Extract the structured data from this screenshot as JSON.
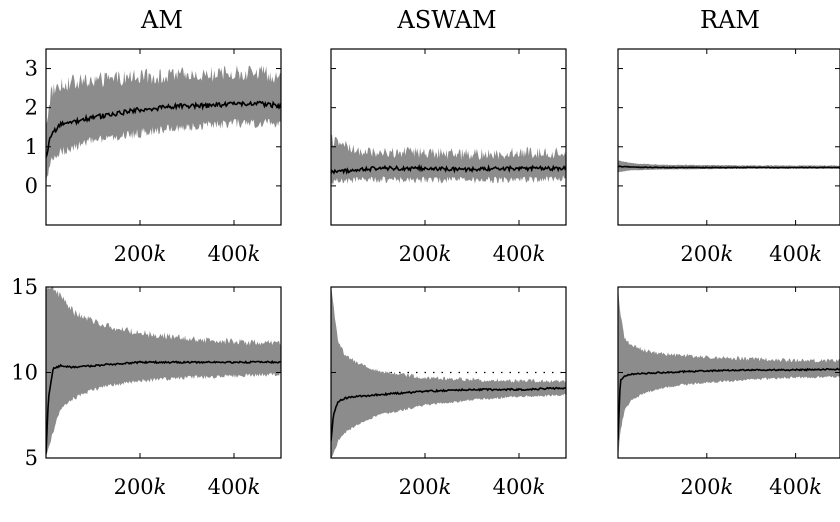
{
  "figure": {
    "titles": [
      "AM",
      "ASWAM",
      "RAM"
    ]
  },
  "chart_data": [
    {
      "type": "line",
      "panel": "AM (top)",
      "title": "AM",
      "xlim": [
        0,
        500000
      ],
      "ylim": [
        -1,
        3.5
      ],
      "xticks": [
        200000,
        400000
      ],
      "xtick_labels": [
        "200k",
        "400k"
      ],
      "yticks": [
        0,
        1,
        2,
        3
      ],
      "ytick_labels": [
        "0",
        "1",
        "2",
        "3"
      ],
      "reference_line": null,
      "grid": false,
      "legend": "none",
      "x": [
        0,
        10000,
        30000,
        60000,
        100000,
        150000,
        200000,
        250000,
        300000,
        350000,
        400000,
        450000,
        500000
      ],
      "mean": [
        0.7,
        1.3,
        1.55,
        1.65,
        1.75,
        1.85,
        1.95,
        2.0,
        2.05,
        2.05,
        2.1,
        2.1,
        2.05
      ],
      "band_lower": [
        0.1,
        0.6,
        0.85,
        1.0,
        1.15,
        1.25,
        1.35,
        1.45,
        1.5,
        1.55,
        1.6,
        1.6,
        1.6
      ],
      "band_upper": [
        1.5,
        2.4,
        2.6,
        2.65,
        2.7,
        2.75,
        2.8,
        2.8,
        2.85,
        2.85,
        2.9,
        2.9,
        2.8
      ],
      "noise": {
        "mean": 0.06,
        "band": 0.2
      }
    },
    {
      "type": "line",
      "panel": "ASWAM (top)",
      "title": "ASWAM",
      "xlim": [
        0,
        500000
      ],
      "ylim": [
        -1,
        3.5
      ],
      "xticks": [
        200000,
        400000
      ],
      "xtick_labels": [
        "200k",
        "400k"
      ],
      "yticks": [
        0,
        1,
        2,
        3
      ],
      "ytick_labels": [],
      "reference_line": null,
      "grid": false,
      "legend": "none",
      "x": [
        0,
        50000,
        100000,
        200000,
        300000,
        400000,
        500000
      ],
      "mean": [
        0.35,
        0.4,
        0.45,
        0.45,
        0.42,
        0.45,
        0.45
      ],
      "band_lower": [
        0.1,
        0.15,
        0.15,
        0.15,
        0.15,
        0.15,
        0.2
      ],
      "band_upper": [
        1.2,
        0.9,
        0.85,
        0.85,
        0.8,
        0.85,
        0.85
      ],
      "noise": {
        "mean": 0.05,
        "band": 0.15
      }
    },
    {
      "type": "line",
      "panel": "RAM (top)",
      "title": "RAM",
      "xlim": [
        0,
        500000
      ],
      "ylim": [
        -1,
        3.5
      ],
      "xticks": [
        200000,
        400000
      ],
      "xtick_labels": [
        "200k",
        "400k"
      ],
      "yticks": [
        0,
        1,
        2,
        3
      ],
      "ytick_labels": [],
      "reference_line": null,
      "grid": false,
      "legend": "none",
      "x": [
        0,
        30000,
        100000,
        200000,
        300000,
        400000,
        500000
      ],
      "mean": [
        0.5,
        0.48,
        0.47,
        0.47,
        0.47,
        0.47,
        0.47
      ],
      "band_lower": [
        0.35,
        0.4,
        0.42,
        0.43,
        0.44,
        0.44,
        0.44
      ],
      "band_upper": [
        0.65,
        0.58,
        0.54,
        0.53,
        0.52,
        0.52,
        0.52
      ],
      "noise": {
        "mean": 0.008,
        "band": 0.01
      }
    },
    {
      "type": "line",
      "panel": "AM (bottom)",
      "xlim": [
        0,
        500000
      ],
      "ylim": [
        5,
        15
      ],
      "xticks": [
        200000,
        400000
      ],
      "xtick_labels": [
        "200k",
        "400k"
      ],
      "yticks": [
        5,
        10,
        15
      ],
      "ytick_labels": [
        "5",
        "10",
        "15"
      ],
      "reference_line": 10,
      "grid": false,
      "legend": "none",
      "x": [
        0,
        5000,
        15000,
        30000,
        60000,
        100000,
        150000,
        200000,
        300000,
        400000,
        500000
      ],
      "mean": [
        5.2,
        8.5,
        10.2,
        10.4,
        10.3,
        10.4,
        10.5,
        10.6,
        10.6,
        10.6,
        10.6
      ],
      "band_lower": [
        5.0,
        5.5,
        6.5,
        7.8,
        8.5,
        9.0,
        9.3,
        9.5,
        9.7,
        9.8,
        9.9
      ],
      "band_upper": [
        15,
        15,
        15,
        14.5,
        13.5,
        13.0,
        12.6,
        12.3,
        12.0,
        11.8,
        11.7
      ],
      "noise": {
        "mean": 0.05,
        "band": 0.2
      }
    },
    {
      "type": "line",
      "panel": "ASWAM (bottom)",
      "xlim": [
        0,
        500000
      ],
      "ylim": [
        5,
        15
      ],
      "xticks": [
        200000,
        400000
      ],
      "xtick_labels": [
        "200k",
        "400k"
      ],
      "yticks": [
        5,
        10,
        15
      ],
      "ytick_labels": [],
      "reference_line": 10,
      "grid": false,
      "legend": "none",
      "x": [
        0,
        5000,
        15000,
        30000,
        60000,
        100000,
        150000,
        200000,
        300000,
        400000,
        500000
      ],
      "mean": [
        6.0,
        7.5,
        8.3,
        8.5,
        8.6,
        8.7,
        8.8,
        8.9,
        9.0,
        9.0,
        9.1
      ],
      "band_lower": [
        5.0,
        5.2,
        6.0,
        6.5,
        7.0,
        7.5,
        7.8,
        8.1,
        8.4,
        8.6,
        8.7
      ],
      "band_upper": [
        15,
        14,
        11.8,
        11.0,
        10.5,
        10.1,
        9.9,
        9.7,
        9.6,
        9.5,
        9.5
      ],
      "noise": {
        "mean": 0.05,
        "band": 0.12
      }
    },
    {
      "type": "line",
      "panel": "RAM (bottom)",
      "xlim": [
        0,
        500000
      ],
      "ylim": [
        5,
        15
      ],
      "xticks": [
        200000,
        400000
      ],
      "xtick_labels": [
        "200k",
        "400k"
      ],
      "yticks": [
        5,
        10,
        15
      ],
      "ytick_labels": [],
      "reference_line": 10,
      "grid": false,
      "legend": "none",
      "x": [
        0,
        5000,
        15000,
        30000,
        60000,
        100000,
        150000,
        200000,
        300000,
        400000,
        500000
      ],
      "mean": [
        6.0,
        9.5,
        9.8,
        9.9,
        9.95,
        10.0,
        10.05,
        10.1,
        10.15,
        10.15,
        10.2
      ],
      "band_lower": [
        5.0,
        6.5,
        7.8,
        8.4,
        8.8,
        9.1,
        9.3,
        9.4,
        9.6,
        9.7,
        9.75
      ],
      "band_upper": [
        15,
        13.5,
        12.0,
        11.6,
        11.3,
        11.1,
        11.0,
        10.9,
        10.8,
        10.7,
        10.7
      ],
      "noise": {
        "mean": 0.04,
        "band": 0.12
      }
    }
  ],
  "colors": {
    "band": "#8c8c8c",
    "mean": "#000000",
    "frame": "#000000",
    "reference": "#000000"
  }
}
